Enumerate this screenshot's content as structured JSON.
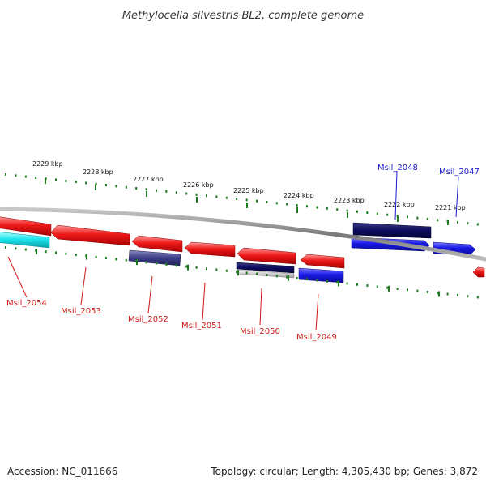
{
  "title": "Methylocella silvestris BL2, complete genome",
  "accession": "Accession: NC_011666",
  "topology": "Topology: circular; Length: 4,305,430 bp; Genes: 3,872",
  "colors": {
    "backbone": "#8c8c8c",
    "ticks": "#1e7a1e",
    "forward_gene": "#1f1fe8",
    "forward_gene_dark": "#0d0d6e",
    "reverse_gene": "#e81a1a",
    "reverse_gene_dark": "#3a3a82",
    "cyan_gene": "#19e1e8",
    "forward_label": "#1a1ad0",
    "reverse_label": "#d01818"
  },
  "ticks": [
    {
      "label": "2229 kbp"
    },
    {
      "label": "2228 kbp"
    },
    {
      "label": "2227 kbp"
    },
    {
      "label": "2226 kbp"
    },
    {
      "label": "2225 kbp"
    },
    {
      "label": "2224 kbp"
    },
    {
      "label": "2223 kbp"
    },
    {
      "label": "2222 kbp"
    },
    {
      "label": "2221 kbp"
    }
  ],
  "genes": [
    {
      "id": "Msil_2054",
      "strand": "reverse"
    },
    {
      "id": "Msil_2053",
      "strand": "reverse"
    },
    {
      "id": "Msil_2052",
      "strand": "reverse"
    },
    {
      "id": "Msil_2051",
      "strand": "reverse"
    },
    {
      "id": "Msil_2050",
      "strand": "reverse"
    },
    {
      "id": "Msil_2049",
      "strand": "reverse"
    },
    {
      "id": "Msil_2048",
      "strand": "forward"
    },
    {
      "id": "Msil_2047",
      "strand": "forward"
    }
  ]
}
